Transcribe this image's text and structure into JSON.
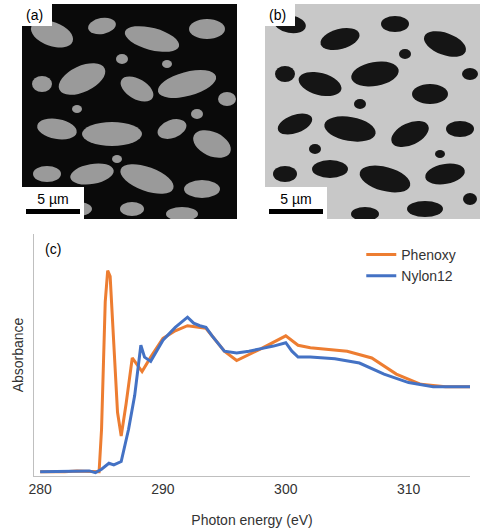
{
  "panels": [
    {
      "label": "(a)",
      "scale_bar": "5 µm"
    },
    {
      "label": "(b)",
      "scale_bar": "5 µm"
    }
  ],
  "chart_data": {
    "type": "line",
    "label": "(c)",
    "x_label": "Photon energy (eV)",
    "y_label": "Absorbance",
    "xlim": [
      279.5,
      315
    ],
    "xticks": [
      280,
      290,
      300,
      310
    ],
    "ylim": [
      -0.05,
      2.8
    ],
    "tick_labels": "x",
    "grid": false,
    "legend": "upper right",
    "series": [
      {
        "name": "Phenoxy",
        "color": "#ed7d31",
        "x": [
          280,
          282,
          283,
          284,
          284.8,
          285.0,
          285.3,
          285.5,
          285.7,
          286.0,
          286.3,
          286.6,
          287.0,
          287.5,
          288.3,
          289,
          290,
          291,
          292,
          293.5,
          295,
          296,
          298,
          300,
          301,
          302,
          305,
          307,
          309,
          311,
          313,
          315
        ],
        "values": [
          0,
          0,
          0.01,
          0,
          0,
          0.5,
          2.0,
          2.37,
          2.3,
          1.5,
          0.7,
          0.42,
          0.8,
          1.34,
          1.18,
          1.35,
          1.57,
          1.66,
          1.72,
          1.69,
          1.42,
          1.31,
          1.45,
          1.6,
          1.49,
          1.46,
          1.42,
          1.34,
          1.15,
          1.03,
          1.0,
          1.0
        ]
      },
      {
        "name": "Nylon12",
        "color": "#4472c4",
        "x": [
          280,
          284,
          284.5,
          285,
          285.6,
          286,
          286.6,
          287.2,
          287.7,
          288.2,
          288.5,
          289,
          290,
          291,
          292,
          292.5,
          293,
          293.5,
          294,
          295,
          296,
          297,
          298,
          299,
          300,
          300.5,
          301,
          302,
          304,
          306,
          308,
          310,
          312,
          315
        ],
        "values": [
          0,
          0.01,
          -0.01,
          0.03,
          0.1,
          0.08,
          0.12,
          0.5,
          0.9,
          1.49,
          1.35,
          1.3,
          1.55,
          1.7,
          1.82,
          1.75,
          1.72,
          1.7,
          1.6,
          1.42,
          1.4,
          1.42,
          1.45,
          1.48,
          1.52,
          1.42,
          1.35,
          1.35,
          1.33,
          1.28,
          1.15,
          1.05,
          1.0,
          1.0
        ]
      }
    ]
  }
}
